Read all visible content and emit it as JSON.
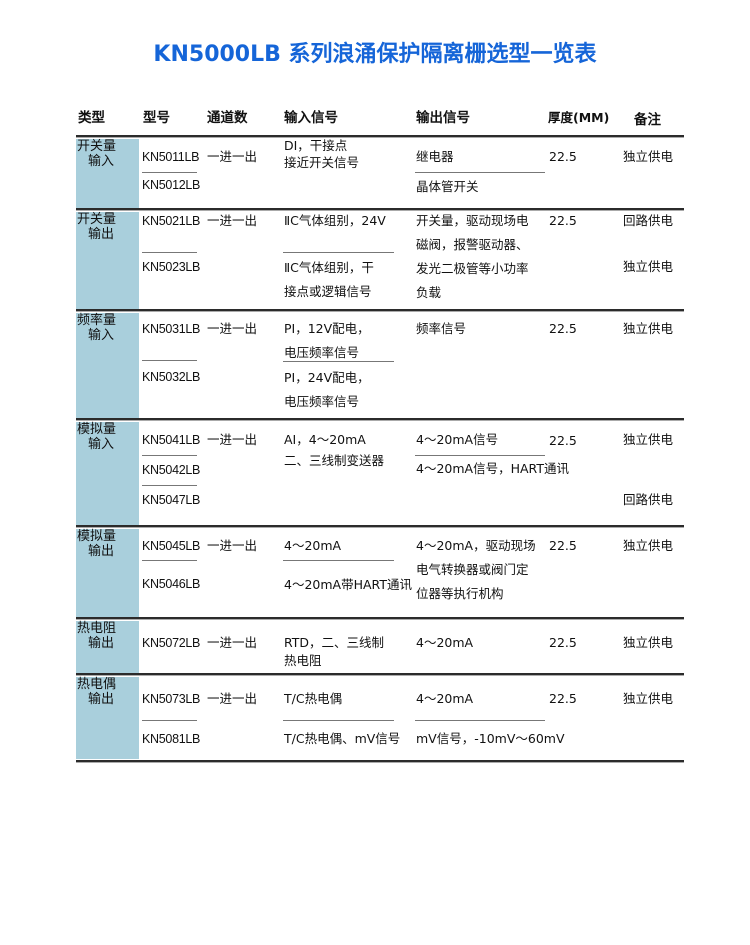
{
  "title": "KN5000LB 系列浪涌保护隔离栅选型一览表",
  "colors": {
    "title": "#1565d8",
    "type_cell": "#a9cfdc"
  },
  "headers": [
    "类型",
    "型号",
    "通道数",
    "输入信号",
    "输出信号",
    "厚度(MM)",
    "备注"
  ],
  "sections": [
    {
      "type": [
        "开关量",
        "输入"
      ],
      "models": [
        "KN5011LB",
        "KN5012LB"
      ],
      "channels": "一进一出",
      "inputs": [
        "DI，干接点",
        "接近开关信号"
      ],
      "outputs": [
        "继电器",
        "晶体管开关"
      ],
      "thickness": "22.5",
      "notes": [
        "独立供电"
      ]
    },
    {
      "type": [
        "开关量",
        "输出"
      ],
      "models": [
        "KN5021LB",
        "KN5023LB"
      ],
      "channels": "一进一出",
      "inputs": [
        "ⅡC气体组别，24V",
        "ⅡC气体组别，干",
        "接点或逻辑信号"
      ],
      "outputs": [
        "开关量，驱动现场电",
        "磁阀，报警驱动器、",
        "发光二极管等小功率",
        "负载"
      ],
      "thickness": "22.5",
      "notes": [
        "回路供电",
        "独立供电"
      ]
    },
    {
      "type": [
        "频率量",
        "输入"
      ],
      "models": [
        "KN5031LB",
        "KN5032LB"
      ],
      "channels": "一进一出",
      "inputs": [
        "PI，12V配电，",
        "电压频率信号",
        "PI，24V配电，",
        "电压频率信号"
      ],
      "outputs": [
        "频率信号"
      ],
      "thickness": "22.5",
      "notes": [
        "独立供电"
      ]
    },
    {
      "type": [
        "模拟量",
        "输入"
      ],
      "models": [
        "KN5041LB",
        "KN5042LB",
        "KN5047LB"
      ],
      "channels": "一进一出",
      "inputs": [
        "AI，4～20mA",
        "二、三线制变送器"
      ],
      "outputs": [
        "4～20mA信号",
        "4～20mA信号，HART通讯"
      ],
      "thickness": "22.5",
      "notes": [
        "独立供电",
        "回路供电"
      ]
    },
    {
      "type": [
        "模拟量",
        "输出"
      ],
      "models": [
        "KN5045LB",
        "KN5046LB"
      ],
      "channels": "一进一出",
      "inputs": [
        "4～20mA",
        "4～20mA带HART通讯"
      ],
      "outputs": [
        "4～20mA，驱动现场",
        "电气转换器或阀门定",
        "位器等执行机构"
      ],
      "thickness": "22.5",
      "notes": [
        "独立供电"
      ]
    },
    {
      "type": [
        "热电阻",
        "输出"
      ],
      "models": [
        "KN5072LB"
      ],
      "channels": "一进一出",
      "inputs": [
        "RTD，二、三线制",
        "热电阻"
      ],
      "outputs": [
        "4～20mA"
      ],
      "thickness": "22.5",
      "notes": [
        "独立供电"
      ]
    },
    {
      "type": [
        "热电偶",
        "输出"
      ],
      "models": [
        "KN5073LB",
        "KN5081LB"
      ],
      "channels": "一进一出",
      "inputs": [
        "T/C热电偶",
        "T/C热电偶、mV信号"
      ],
      "outputs": [
        "4～20mA",
        "mV信号，-10mV～60mV"
      ],
      "thickness": "22.5",
      "notes": [
        "独立供电"
      ]
    }
  ]
}
